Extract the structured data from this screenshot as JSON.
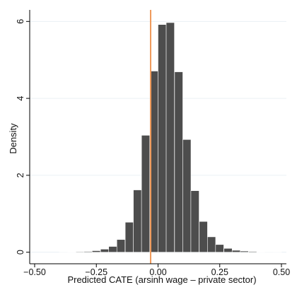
{
  "chart_data": {
    "type": "bar",
    "subtype": "histogram",
    "xlabel": "Predicted CATE (arsinh wage – private sector)",
    "ylabel": "Density",
    "xlim": [
      -0.52,
      0.52
    ],
    "ylim": [
      -0.3,
      6.3
    ],
    "xticks": [
      -0.5,
      -0.25,
      0.0,
      0.25,
      0.5
    ],
    "xtick_labels": [
      "−0.50",
      "−0.25",
      "0.00",
      "0.25",
      "0.50"
    ],
    "yticks": [
      0,
      2,
      4,
      6
    ],
    "ytick_labels": [
      "0",
      "2",
      "4",
      "6"
    ],
    "grid": "horizontal",
    "bin_width": 0.0333,
    "bins": [
      {
        "left": -0.5,
        "density": 0.0
      },
      {
        "left": -0.467,
        "density": 0.0
      },
      {
        "left": -0.433,
        "density": 0.0
      },
      {
        "left": -0.4,
        "density": 0.005
      },
      {
        "left": -0.367,
        "density": 0.01
      },
      {
        "left": -0.333,
        "density": 0.015
      },
      {
        "left": -0.3,
        "density": 0.02
      },
      {
        "left": -0.267,
        "density": 0.04
      },
      {
        "left": -0.233,
        "density": 0.08
      },
      {
        "left": -0.2,
        "density": 0.15
      },
      {
        "left": -0.167,
        "density": 0.33
      },
      {
        "left": -0.133,
        "density": 0.78
      },
      {
        "left": -0.1,
        "density": 1.62
      },
      {
        "left": -0.067,
        "density": 3.04
      },
      {
        "left": -0.033,
        "density": 4.71
      },
      {
        "left": 0.0,
        "density": 5.92
      },
      {
        "left": 0.033,
        "density": 5.97
      },
      {
        "left": 0.067,
        "density": 4.69
      },
      {
        "left": 0.1,
        "density": 2.93
      },
      {
        "left": 0.133,
        "density": 1.6
      },
      {
        "left": 0.167,
        "density": 0.8
      },
      {
        "left": 0.2,
        "density": 0.4
      },
      {
        "left": 0.233,
        "density": 0.2
      },
      {
        "left": 0.267,
        "density": 0.1
      },
      {
        "left": 0.3,
        "density": 0.05
      },
      {
        "left": 0.333,
        "density": 0.03
      },
      {
        "left": 0.367,
        "density": 0.02
      },
      {
        "left": 0.4,
        "density": 0.01
      },
      {
        "left": 0.433,
        "density": 0.005
      },
      {
        "left": 0.467,
        "density": 0.002
      }
    ],
    "reference_line": {
      "x": -0.03,
      "color": "#ef9a5a"
    },
    "colors": {
      "bar_fill": "#4d4d4d",
      "bar_edge": "#ffffff",
      "grid": "#eaf0f4",
      "axis": "#000000"
    }
  }
}
